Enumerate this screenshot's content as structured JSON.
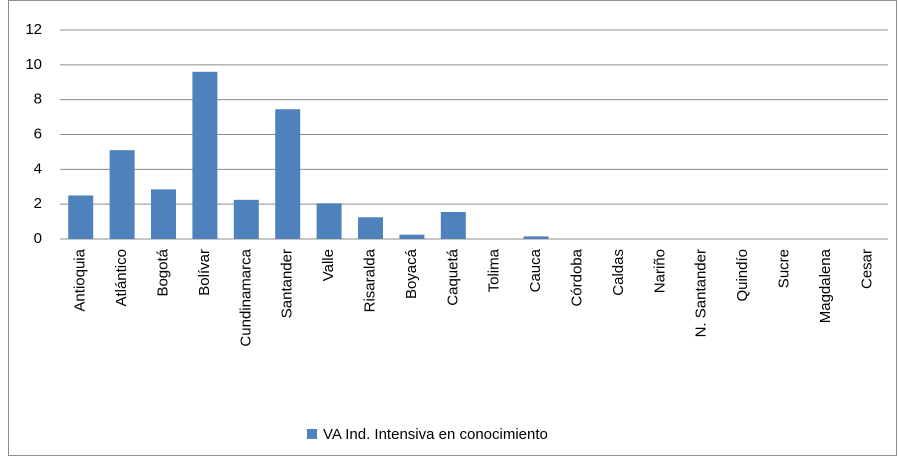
{
  "chart_data": {
    "type": "bar",
    "categories": [
      "Antioquia",
      "Atlántico",
      "Bogotá",
      "Bolívar",
      "Cundinamarca",
      "Santander",
      "Valle",
      "Risaralda",
      "Boyacá",
      "Caquetá",
      "Tolima",
      "Cauca",
      "Córdoba",
      "Caldas",
      "Nariño",
      "N. Santander",
      "Quindío",
      "Sucre",
      "Magdalena",
      "Cesar"
    ],
    "series": [
      {
        "name": "VA Ind. Intensiva en conocimiento",
        "color": "#4f81bd",
        "values": [
          2.5,
          5.1,
          2.85,
          9.6,
          2.25,
          7.45,
          2.05,
          1.25,
          0.25,
          1.55,
          0,
          0.15,
          0,
          0,
          0,
          0,
          0,
          0,
          0,
          0
        ]
      }
    ],
    "ylim": [
      0,
      12
    ],
    "yticks": [
      0,
      2,
      4,
      6,
      8,
      10,
      12
    ],
    "grid": true,
    "legend": "bottom"
  }
}
